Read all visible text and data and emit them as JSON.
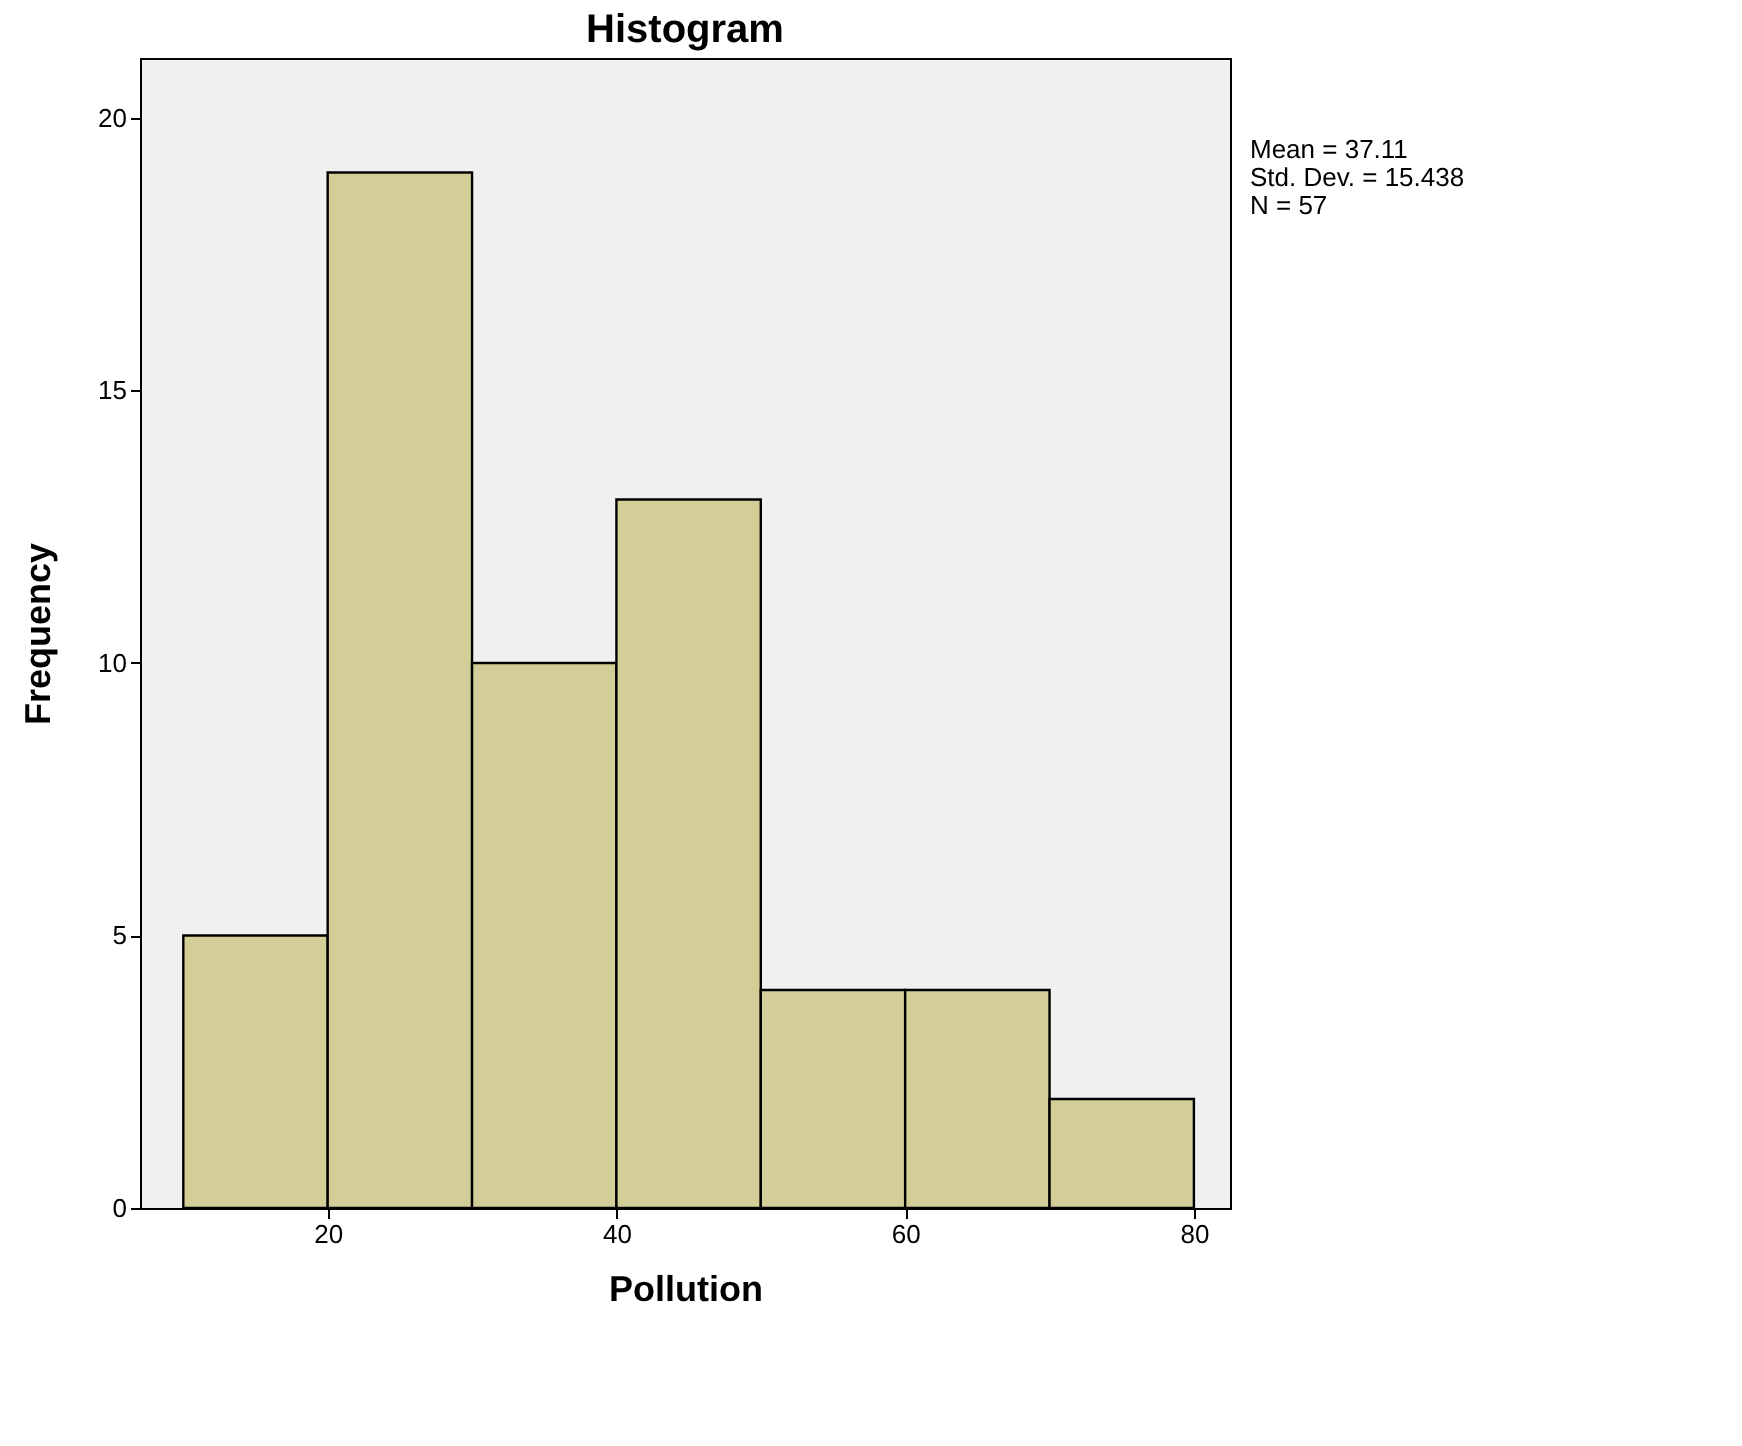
{
  "chart_data": {
    "type": "histogram",
    "title": "Histogram",
    "xlabel": "Pollution",
    "ylabel": "Frequency",
    "bins": [
      10,
      20,
      30,
      40,
      50,
      60,
      70,
      80
    ],
    "values": [
      5,
      19,
      10,
      13,
      4,
      4,
      2
    ],
    "color": "#d3ce97",
    "xlim": [
      7,
      82.5
    ],
    "xticks": [
      20,
      40,
      60,
      80
    ],
    "ylim": [
      0,
      21.1
    ],
    "yticks": [
      0,
      5,
      10,
      15,
      20
    ],
    "grid": false,
    "annotations": [
      "Mean = 37.11",
      "Std. Dev. = 15.438",
      "N = 57"
    ]
  }
}
